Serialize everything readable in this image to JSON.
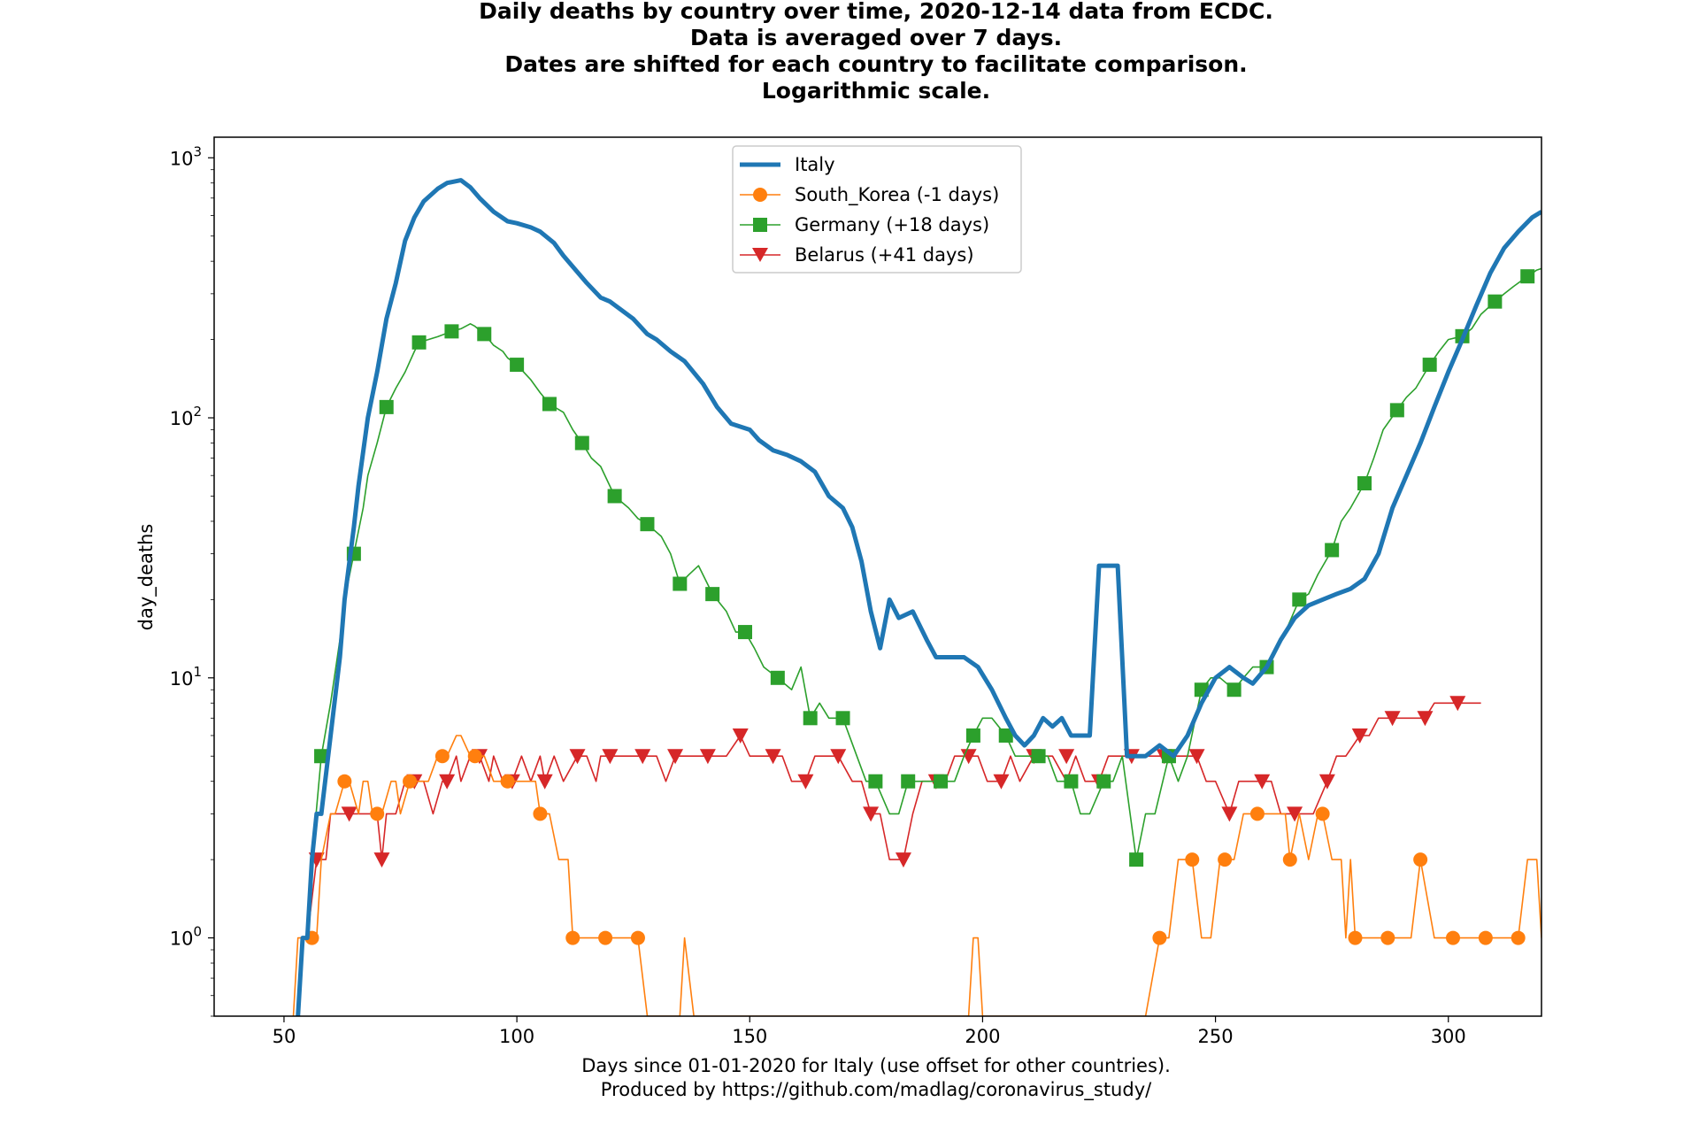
{
  "chart_data": {
    "type": "line",
    "title_lines": [
      "Daily deaths by country over time, 2020-12-14 data from ECDC.",
      "Data is averaged over 7 days.",
      "Dates are shifted for each country to facilitate comparison.",
      "Logarithmic scale."
    ],
    "xlabel_lines": [
      "Days since 01-01-2020 for Italy (use offset for other countries).",
      "Produced by https://github.com/madlag/coronavirus_study/"
    ],
    "ylabel": "day_deaths",
    "yscale": "log",
    "xlim": [
      35,
      320
    ],
    "ylim": [
      0.5,
      1200
    ],
    "x_ticks": [
      50,
      100,
      150,
      200,
      250,
      300
    ],
    "x_tick_labels": [
      "50",
      "100",
      "150",
      "200",
      "250",
      "300"
    ],
    "y_ticks": [
      1,
      10,
      100,
      1000
    ],
    "y_tick_labels": [
      {
        "base": "10",
        "exp": "0"
      },
      {
        "base": "10",
        "exp": "1"
      },
      {
        "base": "10",
        "exp": "2"
      },
      {
        "base": "10",
        "exp": "3"
      }
    ],
    "legend_position": "top-center",
    "series": [
      {
        "name": "Italy",
        "color": "#1f77b4",
        "marker": "none",
        "x": [
          53,
          54,
          55,
          56,
          57,
          58,
          60,
          62,
          63,
          65,
          66,
          68,
          70,
          72,
          74,
          76,
          78,
          80,
          83,
          85,
          88,
          90,
          92,
          95,
          98,
          100,
          103,
          105,
          108,
          110,
          115,
          118,
          120,
          125,
          128,
          130,
          133,
          136,
          140,
          143,
          146,
          150,
          152,
          155,
          158,
          161,
          164,
          167,
          170,
          172,
          174,
          176,
          178,
          180,
          182,
          185,
          188,
          190,
          193,
          196,
          199,
          202,
          205,
          207,
          209,
          211,
          213,
          215,
          217,
          219,
          221,
          223,
          225,
          227,
          229,
          231,
          233,
          235,
          238,
          241,
          244,
          247,
          250,
          253,
          256,
          258,
          261,
          264,
          267,
          270,
          273,
          276,
          279,
          282,
          285,
          288,
          291,
          294,
          297,
          300,
          303,
          306,
          309,
          312,
          315,
          318,
          320
        ],
        "y": [
          0.5,
          1,
          1,
          2,
          3,
          3,
          6,
          12,
          20,
          38,
          55,
          100,
          150,
          240,
          330,
          480,
          590,
          680,
          760,
          800,
          820,
          770,
          700,
          620,
          570,
          560,
          540,
          520,
          470,
          420,
          330,
          290,
          280,
          240,
          210,
          200,
          180,
          165,
          135,
          110,
          95,
          90,
          82,
          75,
          72,
          68,
          62,
          50,
          45,
          38,
          28,
          18,
          13,
          20,
          17,
          18,
          14,
          12,
          12,
          12,
          11,
          9,
          7,
          6,
          5.5,
          6,
          7,
          6.5,
          7,
          6,
          6,
          6,
          27,
          27,
          27,
          5,
          5,
          5,
          5.5,
          5,
          6,
          8,
          10,
          11,
          10,
          9.5,
          11,
          14,
          17,
          19,
          20,
          21,
          22,
          24,
          30,
          45,
          60,
          80,
          110,
          150,
          200,
          270,
          360,
          450,
          520,
          590,
          620
        ]
      },
      {
        "name": "South_Korea (-1 days)",
        "color": "#ff7f0e",
        "marker": "circle",
        "marker_x": [
          56,
          63,
          70,
          77,
          84,
          91,
          98,
          105,
          112,
          119,
          126,
          238,
          245,
          252,
          259,
          266,
          273,
          280,
          287,
          294,
          301,
          308,
          315
        ],
        "x": [
          52,
          53,
          54,
          55,
          56,
          57,
          58,
          60,
          61,
          63,
          64,
          66,
          67,
          68,
          69,
          70,
          71,
          73,
          74,
          75,
          77,
          79,
          81,
          83,
          84,
          85,
          87,
          88,
          90,
          91,
          93,
          95,
          97,
          98,
          100,
          102,
          104,
          105,
          107,
          109,
          111,
          112,
          114,
          116,
          119,
          122,
          124,
          126,
          128,
          131,
          133,
          135,
          136,
          138,
          142,
          146,
          150,
          155,
          160,
          165,
          170,
          175,
          180,
          185,
          190,
          195,
          197,
          198,
          199,
          200,
          205,
          210,
          215,
          220,
          225,
          230,
          235,
          238,
          240,
          242,
          244,
          245,
          247,
          249,
          251,
          252,
          254,
          256,
          258,
          259,
          261,
          263,
          265,
          266,
          268,
          270,
          272,
          273,
          275,
          277,
          278,
          279,
          280,
          283,
          287,
          290,
          292,
          294,
          297,
          301,
          305,
          308,
          312,
          315,
          317,
          319,
          320
        ],
        "y": [
          0.5,
          1,
          1,
          1,
          1,
          1,
          2,
          3,
          3,
          4,
          4,
          3,
          4,
          4,
          3,
          3,
          3,
          4,
          4,
          3,
          4,
          4,
          4,
          5,
          5,
          5,
          6,
          6,
          5,
          5,
          5,
          4,
          4,
          4,
          4,
          4,
          4,
          3,
          3,
          2,
          2,
          1,
          1,
          1,
          1,
          1,
          1,
          1,
          0.5,
          0.5,
          0.5,
          0.5,
          1,
          0.5,
          0.5,
          0.5,
          0.5,
          0.5,
          0.5,
          0.5,
          0.5,
          0.5,
          0.5,
          0.5,
          0.5,
          0.5,
          0.5,
          1,
          1,
          0.5,
          0.5,
          0.5,
          0.5,
          0.5,
          0.5,
          0.5,
          0.5,
          1,
          1,
          2,
          2,
          2,
          1,
          1,
          2,
          2,
          2,
          3,
          3,
          3,
          3,
          3,
          3,
          2,
          3,
          2,
          3,
          3,
          2,
          2,
          1,
          2,
          1,
          1,
          1,
          1,
          1,
          2,
          1,
          1,
          1,
          1,
          1,
          1,
          2,
          2,
          1
        ]
      },
      {
        "name": "Germany (+18 days)",
        "color": "#2ca02c",
        "marker": "square",
        "marker_x": [
          58,
          65,
          72,
          79,
          86,
          93,
          100,
          107,
          114,
          121,
          128,
          135,
          142,
          149,
          156,
          163,
          170,
          177,
          184,
          191,
          198,
          205,
          212,
          219,
          226,
          233,
          240,
          247,
          254,
          261,
          268,
          275,
          282,
          289,
          296,
          303,
          310,
          317
        ],
        "x": [
          54,
          55,
          56,
          58,
          60,
          62,
          63,
          65,
          67,
          68,
          70,
          72,
          74,
          76,
          78,
          79,
          81,
          83,
          86,
          88,
          90,
          91,
          93,
          95,
          97,
          98,
          100,
          103,
          105,
          107,
          110,
          112,
          114,
          116,
          118,
          121,
          124,
          126,
          128,
          131,
          133,
          135,
          137,
          139,
          142,
          145,
          147,
          149,
          151,
          153,
          156,
          159,
          161,
          163,
          165,
          167,
          170,
          173,
          175,
          177,
          180,
          182,
          184,
          186,
          188,
          191,
          194,
          196,
          198,
          200,
          202,
          205,
          207,
          209,
          212,
          214,
          216,
          219,
          221,
          223,
          226,
          228,
          230,
          233,
          235,
          237,
          240,
          242,
          244,
          247,
          249,
          251,
          254,
          256,
          258,
          261,
          263,
          265,
          268,
          270,
          272,
          275,
          277,
          279,
          282,
          284,
          286,
          289,
          291,
          293,
          296,
          298,
          300,
          303,
          305,
          307,
          310,
          312,
          314,
          317,
          319,
          320
        ],
        "y": [
          1,
          1,
          2,
          5,
          8,
          14,
          20,
          30,
          45,
          60,
          80,
          110,
          130,
          150,
          180,
          195,
          200,
          205,
          215,
          220,
          230,
          225,
          210,
          190,
          180,
          170,
          160,
          140,
          125,
          113,
          105,
          90,
          80,
          70,
          65,
          50,
          45,
          41,
          39,
          35,
          30,
          23,
          25,
          27,
          21,
          18,
          15,
          15,
          13,
          11,
          10,
          9,
          11,
          7,
          8,
          7,
          7,
          5,
          4,
          4,
          3,
          3,
          4,
          4,
          4,
          4,
          4,
          5,
          6,
          7,
          7,
          6,
          5,
          5,
          5,
          5,
          4,
          4,
          3,
          3,
          4,
          4,
          5,
          2,
          3,
          3,
          5,
          4,
          5,
          9,
          10,
          10,
          9,
          10,
          11,
          11,
          13,
          15,
          20,
          21,
          25,
          31,
          40,
          45,
          56,
          70,
          90,
          107,
          120,
          130,
          160,
          180,
          200,
          206,
          220,
          250,
          280,
          300,
          320,
          350,
          370,
          375
        ]
      },
      {
        "name": "Belarus (+41 days)",
        "color": "#d62728",
        "marker": "triangle-down",
        "marker_x": [
          57,
          64,
          71,
          78,
          85,
          92,
          99,
          106,
          113,
          120,
          127,
          134,
          141,
          148,
          155,
          162,
          169,
          176,
          183,
          190,
          197,
          204,
          211,
          218,
          225,
          232,
          239,
          246,
          253,
          260,
          267,
          274,
          281,
          288,
          295,
          302
        ],
        "marker_y": [
          2,
          3,
          2,
          4,
          4,
          5,
          4,
          4,
          5,
          5,
          5,
          5,
          5,
          6,
          5,
          4,
          5,
          3,
          2,
          4,
          5,
          4,
          5,
          5,
          4,
          5,
          5,
          5,
          3,
          4,
          3,
          4,
          6,
          7,
          7,
          8
        ],
        "x": [
          53,
          54,
          55,
          57,
          59,
          60,
          62,
          64,
          66,
          68,
          70,
          71,
          72,
          74,
          76,
          78,
          80,
          82,
          84,
          85,
          87,
          88,
          90,
          92,
          94,
          95,
          97,
          99,
          101,
          103,
          105,
          106,
          108,
          110,
          113,
          115,
          117,
          118,
          120,
          123,
          125,
          127,
          130,
          132,
          134,
          136,
          138,
          141,
          143,
          145,
          148,
          150,
          153,
          155,
          157,
          159,
          162,
          164,
          167,
          169,
          172,
          174,
          176,
          178,
          180,
          183,
          185,
          187,
          190,
          192,
          194,
          197,
          199,
          201,
          204,
          206,
          208,
          211,
          213,
          215,
          218,
          220,
          222,
          225,
          227,
          229,
          232,
          234,
          236,
          239,
          241,
          243,
          246,
          248,
          250,
          253,
          255,
          257,
          260,
          262,
          264,
          267,
          269,
          271,
          274,
          276,
          278,
          281,
          283,
          285,
          288,
          290,
          292,
          295,
          297,
          299,
          302,
          304,
          307
        ],
        "y": [
          0.5,
          1,
          1,
          2,
          2,
          3,
          3,
          3,
          3,
          3,
          3,
          2,
          3,
          3,
          4,
          4,
          4,
          3,
          4,
          4,
          5,
          4,
          5,
          5,
          4,
          5,
          4,
          4,
          5,
          4,
          5,
          4,
          5,
          4,
          5,
          5,
          4,
          5,
          5,
          5,
          5,
          5,
          5,
          4,
          5,
          5,
          5,
          5,
          5,
          5,
          6,
          5,
          5,
          5,
          5,
          4,
          4,
          5,
          5,
          5,
          4,
          4,
          3,
          3,
          2,
          2,
          3,
          4,
          4,
          4,
          5,
          5,
          5,
          4,
          4,
          5,
          4,
          5,
          5,
          5,
          4,
          5,
          4,
          4,
          5,
          5,
          5,
          5,
          5,
          5,
          5,
          5,
          5,
          4,
          4,
          3,
          4,
          4,
          4,
          4,
          3,
          3,
          3,
          3,
          4,
          5,
          5,
          6,
          6,
          7,
          7,
          7,
          7,
          7,
          8,
          8,
          8,
          8,
          8
        ]
      }
    ]
  }
}
